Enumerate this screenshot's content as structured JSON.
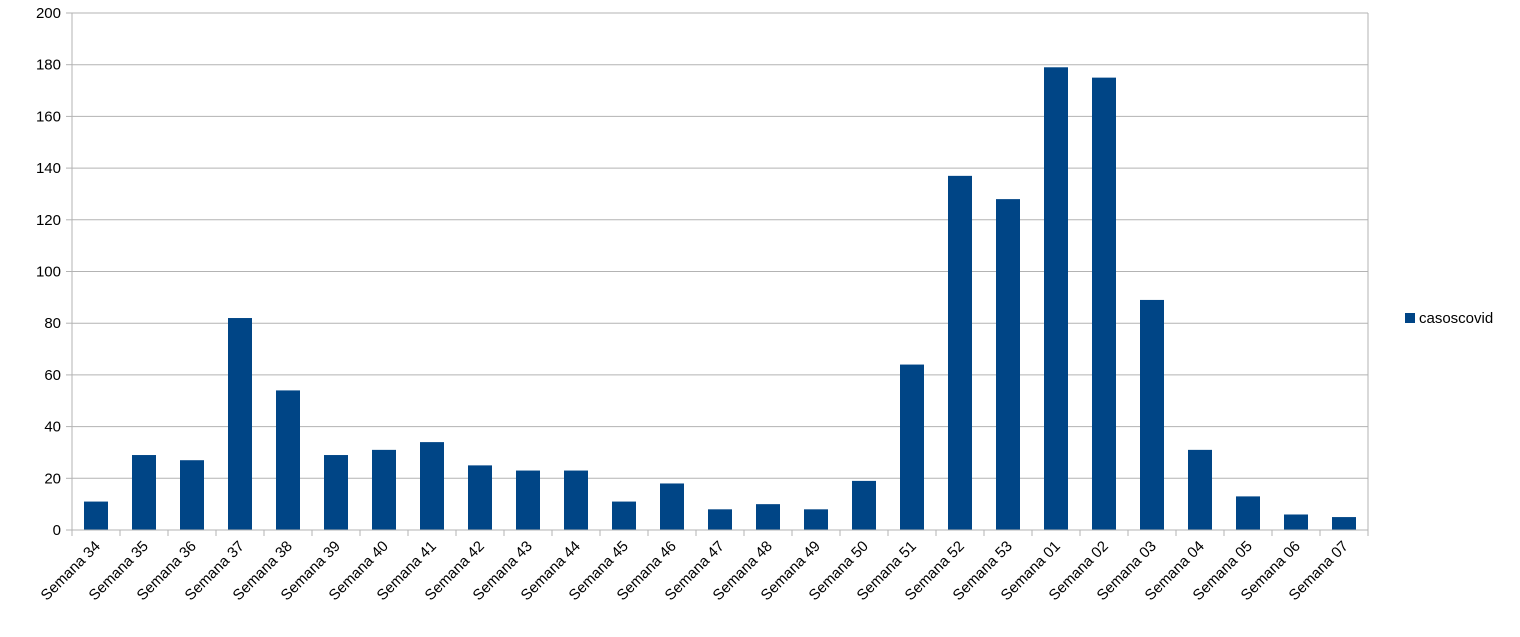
{
  "chart_data": {
    "type": "bar",
    "title": "",
    "xlabel": "",
    "ylabel": "",
    "ylim": [
      0,
      200
    ],
    "yticks": [
      0,
      20,
      40,
      60,
      80,
      100,
      120,
      140,
      160,
      180,
      200
    ],
    "grid": "horizontal",
    "legend_position": "right",
    "bar_color": "#004586",
    "categories": [
      "Semana 34",
      "Semana 35",
      "Semana 36",
      "Semana 37",
      "Semana 38",
      "Semana 39",
      "Semana 40",
      "Semana 41",
      "Semana 42",
      "Semana 43",
      "Semana 44",
      "Semana 45",
      "Semana 46",
      "Semana 47",
      "Semana 48",
      "Semana 49",
      "Semana 50",
      "Semana 51",
      "Semana 52",
      "Semana 53",
      "Semana 01",
      "Semana 02",
      "Semana 03",
      "Semana 04",
      "Semana 05",
      "Semana 06",
      "Semana 07"
    ],
    "series": [
      {
        "name": "casoscovid",
        "values": [
          11,
          29,
          27,
          82,
          54,
          29,
          31,
          34,
          25,
          23,
          23,
          11,
          18,
          8,
          10,
          8,
          19,
          64,
          137,
          128,
          179,
          175,
          89,
          31,
          13,
          6,
          5
        ]
      }
    ]
  }
}
